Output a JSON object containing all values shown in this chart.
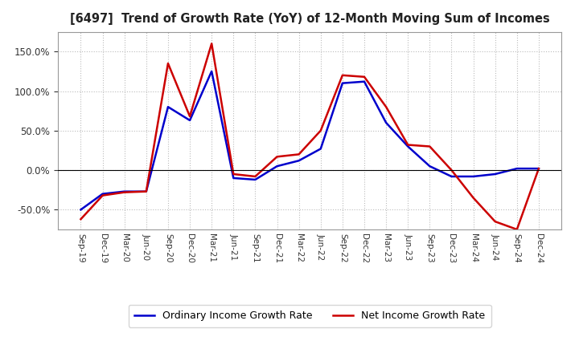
{
  "title": "[6497]  Trend of Growth Rate (YoY) of 12-Month Moving Sum of Incomes",
  "ylim": [
    -75,
    175
  ],
  "yticks": [
    -50.0,
    0.0,
    50.0,
    100.0,
    150.0
  ],
  "background_color": "#ffffff",
  "plot_bg_color": "#ffffff",
  "grid_color": "#bbbbbb",
  "line_color_ordinary": "#0000cc",
  "line_color_net": "#cc0000",
  "legend_ordinary": "Ordinary Income Growth Rate",
  "legend_net": "Net Income Growth Rate",
  "x_labels": [
    "Sep-19",
    "Dec-19",
    "Mar-20",
    "Jun-20",
    "Sep-20",
    "Dec-20",
    "Mar-21",
    "Jun-21",
    "Sep-21",
    "Dec-21",
    "Mar-22",
    "Jun-22",
    "Sep-22",
    "Dec-22",
    "Mar-23",
    "Jun-23",
    "Sep-23",
    "Dec-23",
    "Mar-24",
    "Jun-24",
    "Sep-24",
    "Dec-24"
  ],
  "ordinary_income_growth": [
    -50.0,
    -30.0,
    -27.0,
    -27.0,
    80.0,
    63.0,
    125.0,
    -10.0,
    -12.0,
    5.0,
    12.0,
    27.0,
    110.0,
    112.0,
    60.0,
    30.0,
    5.0,
    -8.0,
    -8.0,
    -5.0,
    2.0,
    2.0
  ],
  "net_income_growth": [
    -62.0,
    -32.0,
    -28.0,
    -27.0,
    135.0,
    68.0,
    160.0,
    -5.0,
    -8.0,
    17.0,
    20.0,
    50.0,
    120.0,
    118.0,
    80.0,
    32.0,
    30.0,
    0.0,
    -35.0,
    -65.0,
    -75.0,
    2.0
  ]
}
